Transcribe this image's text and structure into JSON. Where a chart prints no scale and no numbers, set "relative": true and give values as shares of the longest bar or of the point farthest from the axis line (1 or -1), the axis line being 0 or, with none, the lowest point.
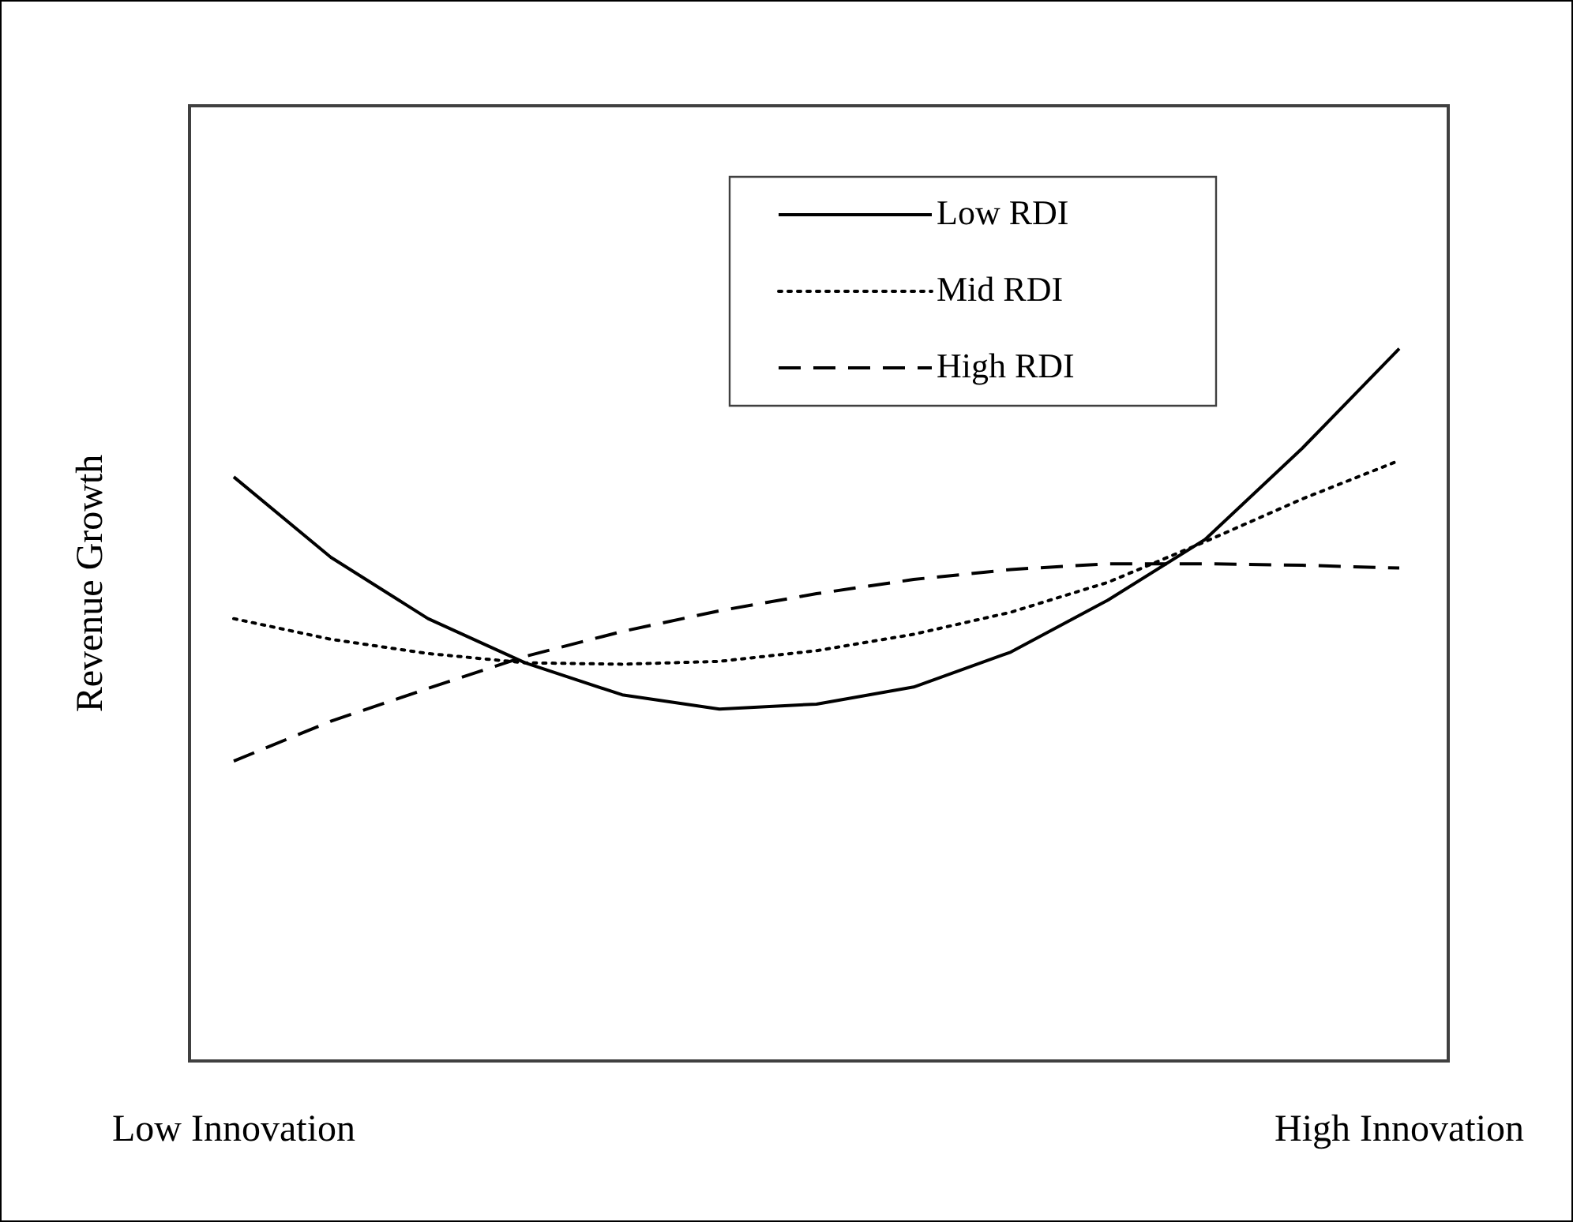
{
  "chart_data": {
    "type": "line",
    "relative": true,
    "ylabel": "Revenue Growth",
    "categories": [
      "Low Innovation",
      null,
      null,
      null,
      null,
      null,
      null,
      null,
      null,
      null,
      null,
      null,
      "High Innovation"
    ],
    "legend": "top right",
    "marker": "none",
    "grid": false,
    "series": [
      {
        "name": "Low RDI",
        "color": "#000000",
        "line_style": "solid",
        "values": [
          0.82,
          0.707,
          0.621,
          0.559,
          0.514,
          0.494,
          0.501,
          0.525,
          0.574,
          0.647,
          0.732,
          0.86,
          1
        ]
      },
      {
        "name": "Mid RDI",
        "color": "#000000",
        "line_style": "dotted",
        "values": [
          0.621,
          0.592,
          0.572,
          0.559,
          0.557,
          0.561,
          0.576,
          0.599,
          0.63,
          0.672,
          0.729,
          0.789,
          0.843
        ]
      },
      {
        "name": "High RDI",
        "color": "#000000",
        "line_style": "dashed",
        "values": [
          0.421,
          0.477,
          0.523,
          0.568,
          0.603,
          0.632,
          0.656,
          0.676,
          0.69,
          0.698,
          0.698,
          0.696,
          0.692
        ]
      }
    ]
  }
}
